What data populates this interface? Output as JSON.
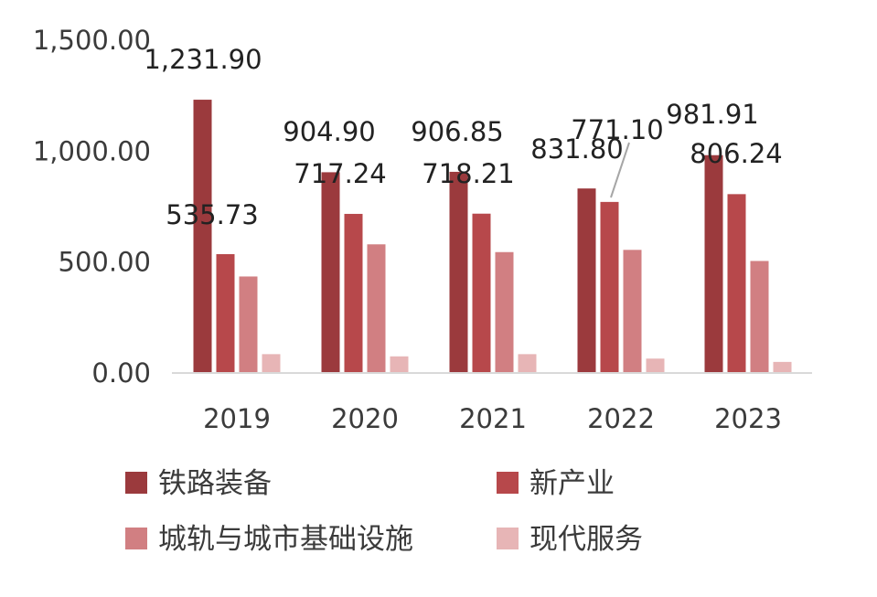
{
  "chart_data": {
    "type": "bar",
    "categories": [
      "2019",
      "2020",
      "2021",
      "2022",
      "2023"
    ],
    "series": [
      {
        "name": "铁路装备",
        "values": [
          1231.9,
          904.9,
          906.85,
          831.8,
          981.91
        ],
        "color": "#9b3a3d"
      },
      {
        "name": "新产业",
        "values": [
          535.73,
          717.24,
          718.21,
          771.1,
          806.24
        ],
        "color": "#b7484b"
      },
      {
        "name": "城轨与城市基础设施",
        "values": [
          435,
          580,
          545,
          555,
          505
        ],
        "color": "#d17f82"
      },
      {
        "name": "现代服务",
        "values": [
          85,
          75,
          85,
          65,
          50
        ],
        "color": "#e7b5b6"
      }
    ],
    "data_labels": [
      {
        "text": "1,231.90"
      },
      {
        "text": "535.73"
      },
      {
        "text": "904.90"
      },
      {
        "text": "717.24"
      },
      {
        "text": "906.85"
      },
      {
        "text": "718.21"
      },
      {
        "text": "831.80"
      },
      {
        "text": "771.10"
      },
      {
        "text": "981.91"
      },
      {
        "text": "806.24"
      }
    ],
    "y_ticks": [
      "0.00",
      "500.00",
      "1,000.00",
      "1,500.00"
    ],
    "ylim": [
      0,
      1500
    ],
    "grid": false,
    "legend_position": "bottom"
  }
}
